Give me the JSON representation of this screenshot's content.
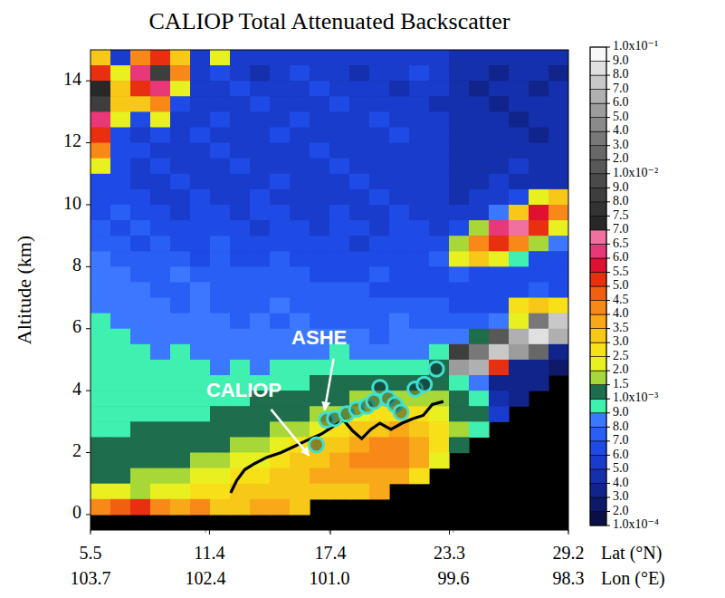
{
  "chart_data": {
    "type": "heatmap",
    "title": "CALIOP Total Attenuated Backscatter",
    "y_label": "Altitude (km)",
    "x_label": "Lat (°N)",
    "x2_label": "Lon (°E)",
    "xlim": [
      5.5,
      29.2
    ],
    "xticks": [
      5.5,
      11.4,
      17.4,
      23.3,
      29.2
    ],
    "x2lim": [
      103.7,
      98.3
    ],
    "x2ticks": [
      103.7,
      102.4,
      {
        "value": 101,
        "label": "101.0"
      },
      99.6,
      98.3
    ],
    "ylim": [
      -0.5,
      15
    ],
    "yticks": [
      0,
      2,
      4,
      6,
      8,
      10,
      12,
      14
    ],
    "colorbar": {
      "range": [
        0.0001,
        0.1
      ],
      "ticks": [
        {
          "value": 0.0001,
          "label": "1.0x10⁻⁴"
        },
        {
          "value": 0.0002,
          "label": "2.0"
        },
        {
          "value": 0.0003,
          "label": "3.0"
        },
        {
          "value": 0.0004,
          "label": "4.0"
        },
        {
          "value": 0.0005,
          "label": "5.0"
        },
        {
          "value": 0.0006,
          "label": "6.0"
        },
        {
          "value": 0.0007,
          "label": "7.0"
        },
        {
          "value": 0.0008,
          "label": "8.0"
        },
        {
          "value": 0.0009,
          "label": "9.0"
        },
        {
          "value": 0.001,
          "label": "1.0x10⁻³"
        },
        {
          "value": 0.0015,
          "label": "1.5"
        },
        {
          "value": 0.002,
          "label": "2.0"
        },
        {
          "value": 0.0025,
          "label": "2.5"
        },
        {
          "value": 0.003,
          "label": "3.0"
        },
        {
          "value": 0.0035,
          "label": "3.5"
        },
        {
          "value": 0.004,
          "label": "4.0"
        },
        {
          "value": 0.0045,
          "label": "4.5"
        },
        {
          "value": 0.005,
          "label": "5.0"
        },
        {
          "value": 0.0055,
          "label": "5.5"
        },
        {
          "value": 0.006,
          "label": "6.0"
        },
        {
          "value": 0.0065,
          "label": "6.5"
        },
        {
          "value": 0.007,
          "label": "7.0"
        },
        {
          "value": 0.0075,
          "label": "7.5"
        },
        {
          "value": 0.008,
          "label": "8.0"
        },
        {
          "value": 0.009,
          "label": "9.0"
        },
        {
          "value": 0.01,
          "label": "1.0x10⁻²"
        },
        {
          "value": 0.02,
          "label": "2.0"
        },
        {
          "value": 0.03,
          "label": "3.0"
        },
        {
          "value": 0.04,
          "label": "4.0"
        },
        {
          "value": 0.05,
          "label": "5.0"
        },
        {
          "value": 0.06,
          "label": "6.0"
        },
        {
          "value": 0.07,
          "label": "7.0"
        },
        {
          "value": 0.08,
          "label": "8.0"
        },
        {
          "value": 0.09,
          "label": "9.0"
        },
        {
          "value": 0.1,
          "label": "1.0x10⁻¹"
        }
      ]
    },
    "cells": [
      [
        0.003,
        0.0005,
        0.004,
        0.005,
        0.003,
        0.0005,
        0.002,
        0.0005,
        0.0005,
        0.0005,
        0.0005,
        0.0005,
        0.0005,
        0.0005,
        0.0005,
        0.0005,
        0.0005,
        0.0005,
        0.0004,
        0.0004,
        0.0004,
        0.0004,
        0.0004,
        0.0004
      ],
      [
        0.005,
        0.002,
        0.006,
        0.008,
        0.004,
        0.0005,
        0.0006,
        0.0005,
        0.0004,
        0.0005,
        0.0006,
        0.0005,
        0.0005,
        0.0004,
        0.0005,
        0.0005,
        0.0006,
        0.0005,
        0.0004,
        0.0004,
        0.0003,
        0.0004,
        0.0004,
        0.0003
      ],
      [
        0.007,
        0.003,
        0.005,
        0.006,
        0.002,
        0.0005,
        0.0005,
        0.0006,
        0.0005,
        0.0005,
        0.0005,
        0.0006,
        0.0005,
        0.0005,
        0.0005,
        0.0004,
        0.0005,
        0.0005,
        0.0004,
        0.0003,
        0.0004,
        0.0004,
        0.0003,
        0.0004
      ],
      [
        0.008,
        0.003,
        0.003,
        0.004,
        0.0006,
        0.0005,
        0.0005,
        0.0005,
        0.0006,
        0.0005,
        0.0005,
        0.0005,
        0.0006,
        0.0005,
        0.0005,
        0.0005,
        0.0005,
        0.0004,
        0.0004,
        0.0004,
        0.0003,
        0.0004,
        0.0004,
        0.0004
      ],
      [
        0.006,
        0.002,
        0.0006,
        0.002,
        0.0005,
        0.0005,
        0.0006,
        0.0005,
        0.0005,
        0.0005,
        0.0006,
        0.0005,
        0.0005,
        0.0005,
        0.0006,
        0.0005,
        0.0005,
        0.0005,
        0.0004,
        0.0004,
        0.0004,
        0.0003,
        0.0004,
        0.0004
      ],
      [
        0.005,
        0.0006,
        0.0005,
        0.0006,
        0.0005,
        0.0006,
        0.0005,
        0.0005,
        0.0005,
        0.0006,
        0.0005,
        0.0005,
        0.0005,
        0.0005,
        0.0005,
        0.0006,
        0.0005,
        0.0005,
        0.0004,
        0.0004,
        0.0004,
        0.0004,
        0.0003,
        0.0004
      ],
      [
        0.004,
        0.0006,
        0.0006,
        0.0005,
        0.0005,
        0.0005,
        0.0006,
        0.0005,
        0.0005,
        0.0005,
        0.0005,
        0.0006,
        0.0005,
        0.0005,
        0.0005,
        0.0005,
        0.0005,
        0.0005,
        0.0004,
        0.0004,
        0.0004,
        0.0004,
        0.0004,
        0.0004
      ],
      [
        0.002,
        0.0006,
        0.0005,
        0.0006,
        0.0005,
        0.0005,
        0.0005,
        0.0006,
        0.0005,
        0.0005,
        0.0005,
        0.0005,
        0.0006,
        0.0005,
        0.0005,
        0.0005,
        0.0005,
        0.0005,
        0.0004,
        0.0004,
        0.0004,
        0.0005,
        0.0004,
        0.0004
      ],
      [
        0.0006,
        0.0006,
        0.0005,
        0.0005,
        0.0006,
        0.0005,
        0.0005,
        0.0005,
        0.0005,
        0.0006,
        0.0005,
        0.0005,
        0.0005,
        0.0006,
        0.0005,
        0.0005,
        0.0005,
        0.0005,
        0.0004,
        0.0004,
        0.0005,
        0.0004,
        0.0004,
        0.0004
      ],
      [
        0.0006,
        0.0006,
        0.0006,
        0.0005,
        0.0005,
        0.0006,
        0.0005,
        0.0005,
        0.0006,
        0.0005,
        0.0005,
        0.0005,
        0.0005,
        0.0005,
        0.0006,
        0.0005,
        0.0005,
        0.0005,
        0.0004,
        0.0005,
        0.0005,
        0.0006,
        0.002,
        0.003
      ],
      [
        0.0006,
        0.0007,
        0.0006,
        0.0006,
        0.0005,
        0.0006,
        0.0006,
        0.0005,
        0.0006,
        0.0006,
        0.0005,
        0.0005,
        0.0006,
        0.0005,
        0.0005,
        0.0006,
        0.0005,
        0.0005,
        0.0005,
        0.0005,
        0.0008,
        0.003,
        0.0055,
        0.004
      ],
      [
        0.0007,
        0.0006,
        0.0007,
        0.0006,
        0.0006,
        0.0006,
        0.0006,
        0.0006,
        0.0005,
        0.0006,
        0.0006,
        0.0005,
        0.0006,
        0.0006,
        0.0005,
        0.0006,
        0.0006,
        0.0005,
        0.0006,
        0.0015,
        0.006,
        0.0065,
        0.005,
        0.002
      ],
      [
        0.0007,
        0.0007,
        0.0006,
        0.0007,
        0.0006,
        0.0006,
        0.0007,
        0.0006,
        0.0006,
        0.0006,
        0.0006,
        0.0006,
        0.0006,
        0.0005,
        0.0006,
        0.0006,
        0.0006,
        0.0006,
        0.0015,
        0.004,
        0.005,
        0.004,
        0.0015,
        0.0008
      ],
      [
        0.0008,
        0.0007,
        0.0007,
        0.0007,
        0.0007,
        0.0006,
        0.0007,
        0.0006,
        0.0006,
        0.0007,
        0.0006,
        0.0006,
        0.0006,
        0.0006,
        0.0006,
        0.0006,
        0.0006,
        0.0007,
        0.002,
        0.003,
        0.002,
        0.0009,
        0.0006,
        0.0006
      ],
      [
        0.0008,
        0.0008,
        0.0007,
        0.0007,
        0.0008,
        0.0007,
        0.0007,
        0.0007,
        0.0007,
        0.0007,
        0.0007,
        0.0006,
        0.0006,
        0.0006,
        0.0007,
        0.0006,
        0.0006,
        0.0006,
        0.0007,
        0.0006,
        0.0006,
        0.0006,
        0.0006,
        0.0006
      ],
      [
        0.0008,
        0.0008,
        0.0008,
        0.0007,
        0.0007,
        0.0008,
        0.0007,
        0.0007,
        0.0007,
        0.0007,
        0.0007,
        0.0007,
        0.0007,
        0.0007,
        0.0006,
        0.0006,
        0.0006,
        0.0006,
        0.0006,
        0.0006,
        0.0006,
        0.0006,
        0.0007,
        0.0006
      ],
      [
        0.0008,
        0.0008,
        0.0008,
        0.0008,
        0.0007,
        0.0008,
        0.0007,
        0.0007,
        0.0007,
        0.0008,
        0.0007,
        0.0007,
        0.0007,
        0.0007,
        0.0007,
        0.0007,
        0.0007,
        0.0007,
        0.0006,
        0.0006,
        0.0006,
        0.0025,
        0.003,
        0.0025
      ],
      [
        0.0009,
        0.0008,
        0.0008,
        0.0008,
        0.0008,
        0.0008,
        0.0008,
        0.0007,
        0.0008,
        0.0007,
        0.0008,
        0.0007,
        0.0007,
        0.0007,
        0.0007,
        0.0008,
        0.0007,
        0.0007,
        0.0007,
        0.0007,
        0.0008,
        0.002,
        0.03,
        0.07
      ],
      [
        0.0009,
        0.0009,
        0.0008,
        0.0008,
        0.0008,
        0.0008,
        0.0008,
        0.0008,
        0.0008,
        0.0008,
        0.0008,
        0.0008,
        0.0008,
        0.0008,
        0.0007,
        0.0008,
        0.0008,
        0.0008,
        0.0008,
        0.001,
        0.01,
        0.06,
        0.08,
        0.06
      ],
      [
        0.0009,
        0.0009,
        0.0009,
        0.0008,
        0.0009,
        0.0008,
        0.0008,
        0.0008,
        0.0008,
        0.0008,
        0.0008,
        0.0008,
        0.0009,
        0.0008,
        0.0008,
        0.0008,
        0.0008,
        0.0009,
        0.008,
        0.03,
        0.07,
        0.05,
        0.02,
        0.0003
      ],
      [
        0.0009,
        0.0009,
        0.0009,
        0.0009,
        0.0009,
        0.0009,
        0.0008,
        0.0009,
        0.0008,
        0.0009,
        0.0009,
        0.0009,
        0.0009,
        0.0009,
        0.0009,
        0.0009,
        0.0009,
        0.0012,
        0.05,
        0.06,
        0.005,
        0.0003,
        0.0003,
        0.0002
      ],
      [
        0.0009,
        0.0009,
        0.0009,
        0.0009,
        0.0009,
        0.0009,
        0.0009,
        0.0009,
        0.0009,
        0.0009,
        0.0009,
        0.001,
        0.001,
        0.0011,
        0.0012,
        0.0012,
        0.0012,
        0.0011,
        0.0009,
        0.0008,
        0.0003,
        0.0003,
        0.0003,
        null
      ],
      [
        0.0009,
        0.0009,
        0.0009,
        0.0009,
        0.0009,
        0.0009,
        0.0009,
        0.0009,
        0.001,
        0.001,
        0.0011,
        0.0012,
        0.0013,
        0.0015,
        0.0017,
        0.0018,
        0.0018,
        0.0015,
        0.0011,
        0.0009,
        0.0004,
        0.0003,
        null,
        null
      ],
      [
        0.0009,
        0.0009,
        0.0009,
        0.0009,
        0.0009,
        0.0009,
        0.001,
        0.001,
        0.0011,
        0.0012,
        0.0013,
        0.0015,
        0.0018,
        0.0022,
        0.0025,
        0.0028,
        0.0026,
        0.002,
        0.0013,
        0.001,
        0.0005,
        null,
        null,
        null
      ],
      [
        0.0009,
        0.0009,
        0.001,
        0.001,
        0.001,
        0.001,
        0.0011,
        0.0012,
        0.0013,
        0.0015,
        0.0018,
        0.0022,
        0.0026,
        0.003,
        0.0034,
        0.0036,
        0.0034,
        0.0026,
        0.0015,
        0.0009,
        null,
        null,
        null,
        null
      ],
      [
        0.001,
        0.001,
        0.0011,
        0.0011,
        0.0012,
        0.0012,
        0.0014,
        0.0016,
        0.0018,
        0.0022,
        0.0026,
        0.003,
        0.0034,
        0.0036,
        0.004,
        0.0042,
        0.0038,
        0.0028,
        0.0012,
        null,
        null,
        null,
        null,
        null
      ],
      [
        0.0011,
        0.0011,
        0.0012,
        0.0012,
        0.0013,
        0.0015,
        0.0018,
        0.002,
        0.0024,
        0.0027,
        0.003,
        0.0034,
        0.0037,
        0.004,
        0.0042,
        0.004,
        0.0035,
        0.0022,
        null,
        null,
        null,
        null,
        null,
        null
      ],
      [
        0.0012,
        0.0013,
        0.0015,
        0.0015,
        0.0018,
        0.002,
        0.0022,
        0.0025,
        0.0028,
        0.003,
        0.0032,
        0.0035,
        0.0036,
        0.0038,
        0.0038,
        0.0035,
        0.0028,
        null,
        null,
        null,
        null,
        null,
        null,
        null
      ],
      [
        0.002,
        0.002,
        0.0018,
        0.002,
        0.0022,
        0.0025,
        0.0028,
        0.003,
        0.003,
        0.0032,
        0.0033,
        0.0032,
        0.003,
        0.0032,
        0.0035,
        null,
        null,
        null,
        null,
        null,
        null,
        null,
        null,
        null
      ],
      [
        0.004,
        0.0045,
        0.005,
        0.004,
        0.0035,
        0.004,
        0.003,
        0.003,
        0.0035,
        0.0035,
        0.003,
        null,
        null,
        null,
        null,
        null,
        null,
        null,
        null,
        null,
        null,
        null,
        null,
        null
      ],
      [
        null,
        null,
        null,
        null,
        null,
        null,
        null,
        null,
        null,
        null,
        null,
        null,
        null,
        null,
        null,
        null,
        null,
        null,
        null,
        null,
        null,
        null,
        null,
        null
      ]
    ],
    "series": [
      {
        "name": "ASHE",
        "type": "scatter",
        "marker": "circle",
        "color": "#40e0d0",
        "x": [
          16.7,
          17.2,
          17.6,
          18.2,
          18.7,
          19.2,
          19.55,
          19.85,
          20.25,
          20.6,
          20.9,
          21.6,
          22.05,
          22.65
        ],
        "values": [
          2.25,
          3.05,
          3.1,
          3.25,
          3.4,
          3.5,
          3.65,
          4.1,
          3.75,
          3.55,
          3.3,
          4.05,
          4.2,
          4.7
        ]
      },
      {
        "name": "CALIOP",
        "type": "line",
        "line_style": "solid",
        "color": "#000000",
        "x": [
          12.45,
          12.75,
          13.15,
          13.65,
          14.25,
          14.95,
          15.6,
          16.25,
          16.95,
          17.55,
          18.05,
          18.5,
          18.95,
          19.4,
          19.85,
          20.4,
          20.95,
          21.5,
          22.0,
          22.45,
          23.0
        ],
        "values": [
          0.7,
          1.1,
          1.45,
          1.65,
          1.85,
          2.0,
          2.2,
          2.4,
          2.6,
          2.85,
          3.05,
          2.7,
          2.45,
          2.75,
          2.95,
          2.75,
          2.95,
          3.1,
          3.2,
          3.55,
          3.65
        ]
      }
    ]
  }
}
